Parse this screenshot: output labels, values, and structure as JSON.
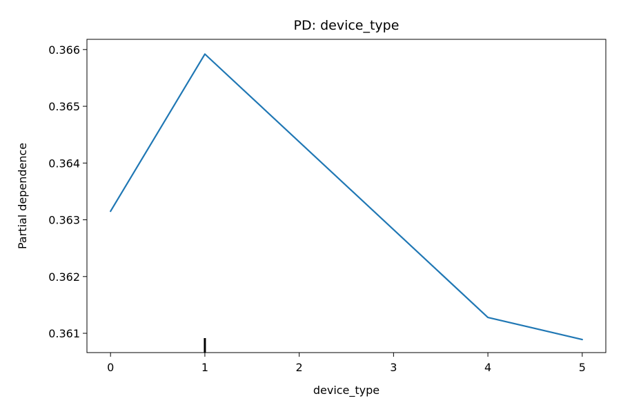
{
  "chart_data": {
    "type": "line",
    "title": "PD: device_type",
    "xlabel": "device_type",
    "ylabel": "Partial dependence",
    "x": [
      0,
      1,
      4,
      5
    ],
    "series": [
      {
        "values": [
          0.36315,
          0.36592,
          0.36128,
          0.36089
        ]
      }
    ],
    "xlim": [
      -0.25,
      5.25
    ],
    "ylim": [
      0.36066,
      0.36618
    ],
    "xticks": [
      0,
      1,
      2,
      3,
      4,
      5
    ],
    "xtick_labels": [
      "0",
      "1",
      "2",
      "3",
      "4",
      "5"
    ],
    "yticks": [
      0.361,
      0.362,
      0.363,
      0.364,
      0.365,
      0.366
    ],
    "ytick_labels": [
      "0.361",
      "0.362",
      "0.363",
      "0.364",
      "0.365",
      "0.366"
    ],
    "rug": [
      1
    ],
    "grid": false,
    "line_color": "#1f77b4"
  }
}
